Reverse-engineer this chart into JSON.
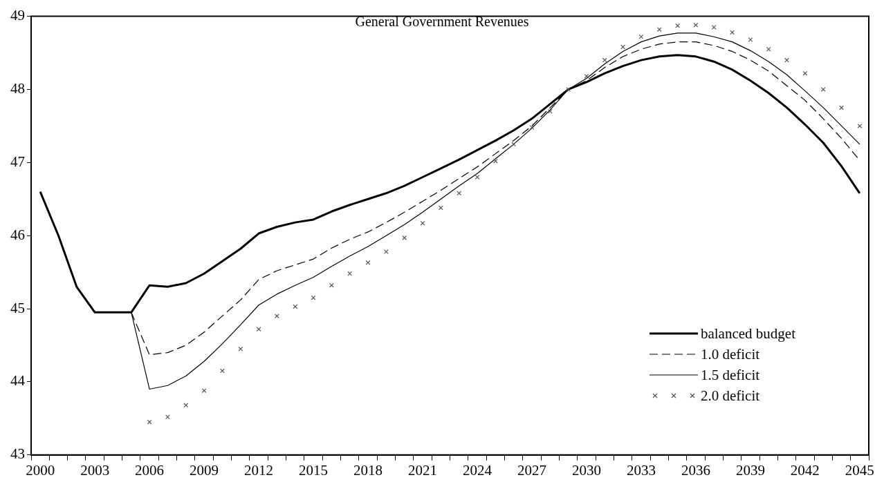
{
  "chart_data": {
    "type": "line",
    "title": "General Government Revenues",
    "categories": [
      "2000",
      null,
      null,
      "2003",
      null,
      null,
      "2006",
      null,
      null,
      "2009",
      null,
      null,
      "2012",
      null,
      null,
      "2015",
      null,
      null,
      "2018",
      null,
      null,
      "2021",
      null,
      null,
      "2024",
      null,
      null,
      "2027",
      null,
      null,
      "2030",
      null,
      null,
      "2033",
      null,
      null,
      "2036",
      null,
      null,
      "2039",
      null,
      null,
      "2042",
      null,
      null,
      "2045"
    ],
    "series": [
      {
        "name": "balanced budget",
        "color": "#000000",
        "line_style": "solid",
        "values": [
          46.6,
          46.0,
          45.3,
          44.95,
          44.95,
          44.95,
          45.32,
          45.3,
          45.35,
          45.48,
          45.65,
          45.82,
          46.03,
          46.12,
          46.18,
          46.22,
          46.33,
          46.42,
          46.5,
          46.58,
          46.68,
          46.8,
          46.92,
          47.04,
          47.17,
          47.3,
          47.44,
          47.6,
          47.8,
          48.0,
          48.1,
          48.22,
          48.32,
          48.4,
          48.45,
          48.47,
          48.45,
          48.38,
          48.27,
          48.12,
          47.95,
          47.75,
          47.52,
          47.27,
          46.95,
          46.58
        ]
      },
      {
        "name": "1.0 deficit",
        "color": "#000000",
        "line_style": "dashed",
        "values": [
          null,
          null,
          null,
          null,
          null,
          44.95,
          44.37,
          44.4,
          44.5,
          44.68,
          44.9,
          45.12,
          45.4,
          45.52,
          45.6,
          45.68,
          45.83,
          45.95,
          46.05,
          46.18,
          46.32,
          46.47,
          46.62,
          46.78,
          46.94,
          47.12,
          47.3,
          47.5,
          47.75,
          48.0,
          48.12,
          48.3,
          48.45,
          48.55,
          48.62,
          48.65,
          48.65,
          48.6,
          48.52,
          48.4,
          48.25,
          48.05,
          47.85,
          47.6,
          47.33,
          47.03
        ]
      },
      {
        "name": "1.5 deficit",
        "color": "#000000",
        "line_style": "solid",
        "values": [
          null,
          null,
          null,
          null,
          null,
          44.95,
          43.9,
          43.95,
          44.08,
          44.28,
          44.52,
          44.78,
          45.05,
          45.2,
          45.32,
          45.43,
          45.58,
          45.72,
          45.85,
          46.0,
          46.15,
          46.32,
          46.5,
          46.68,
          46.85,
          47.05,
          47.25,
          47.47,
          47.72,
          48.0,
          48.15,
          48.35,
          48.52,
          48.65,
          48.73,
          48.77,
          48.77,
          48.72,
          48.65,
          48.53,
          48.38,
          48.2,
          47.98,
          47.75,
          47.5,
          47.25
        ]
      },
      {
        "name": "2.0 deficit",
        "color": "#555555",
        "type": "scatter",
        "marker": "cross",
        "values": [
          null,
          null,
          null,
          null,
          null,
          null,
          43.45,
          43.52,
          43.68,
          43.88,
          44.15,
          44.45,
          44.72,
          44.9,
          45.03,
          45.15,
          45.32,
          45.48,
          45.63,
          45.78,
          45.97,
          46.17,
          46.38,
          46.58,
          46.8,
          47.02,
          47.25,
          47.48,
          47.7,
          48.0,
          48.18,
          48.4,
          48.58,
          48.72,
          48.82,
          48.87,
          48.88,
          48.85,
          48.78,
          48.68,
          48.55,
          48.4,
          48.22,
          48.0,
          47.75,
          47.5
        ]
      }
    ],
    "ylim": [
      43,
      49
    ],
    "yticks": [
      43,
      44,
      45,
      46,
      47,
      48,
      49
    ],
    "grid": false,
    "legend": "bottom right"
  }
}
